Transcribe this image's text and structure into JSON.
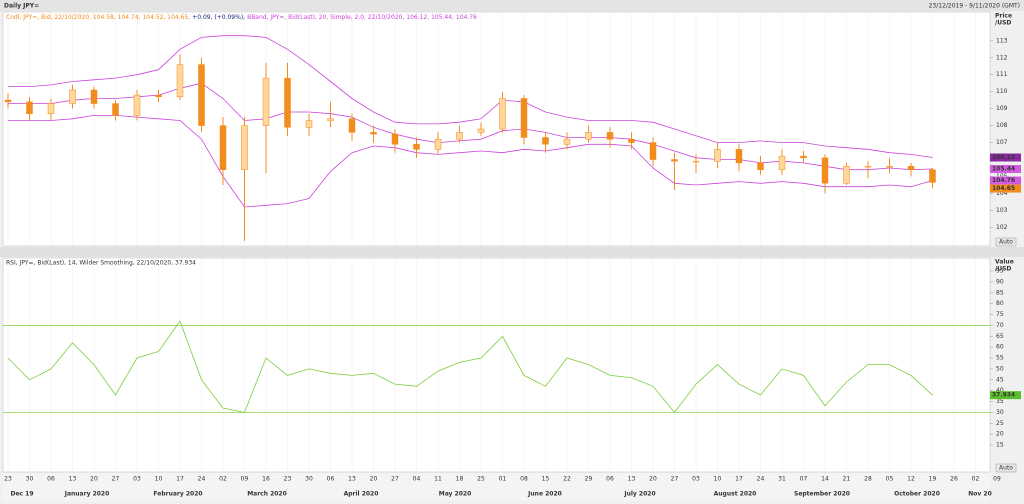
{
  "header": {
    "title": "Daily JPY=",
    "range": "23/12/2019 - 9/11/2020 (GMT)"
  },
  "chart_data": [
    {
      "type": "candlestick",
      "legend": [
        "Cndl, JPY=, Bid, 22/10/2020, 104.58, 104.74, 104.52, 104.65,",
        "+0.09, (+0.09%),",
        "BBand, JPY=, Bid(Last), 20, Simple, 2.0, 22/10/2020, 106.12, 105.44, 104.76"
      ],
      "ylabel": [
        "Price",
        "/USD"
      ],
      "scale_button": "Auto",
      "categories": [
        "23",
        "30",
        "06",
        "13",
        "20",
        "27",
        "03",
        "10",
        "17",
        "24",
        "02",
        "09",
        "16",
        "23",
        "30",
        "06",
        "13",
        "20",
        "27",
        "04",
        "11",
        "18",
        "25",
        "01",
        "08",
        "15",
        "22",
        "29",
        "06",
        "13",
        "20",
        "27",
        "03",
        "10",
        "17",
        "24",
        "31",
        "07",
        "14",
        "21",
        "28",
        "05",
        "12",
        "19",
        "26",
        "02",
        "09"
      ],
      "months": [
        "Dec 19",
        "January 2020",
        "February 2020",
        "March 2020",
        "April 2020",
        "May 2020",
        "June 2020",
        "July 2020",
        "August 2020",
        "September 2020",
        "October 2020",
        "Nov 20"
      ],
      "open": [
        109.5,
        109.4,
        108.7,
        109.3,
        110.1,
        109.3,
        108.6,
        109.8,
        109.7,
        111.6,
        108.0,
        105.4,
        108.0,
        110.8,
        107.9,
        108.3,
        108.4,
        107.6,
        107.5,
        106.9,
        106.6,
        107.2,
        107.6,
        107.8,
        109.6,
        107.3,
        106.9,
        107.2,
        107.6,
        107.2,
        107.0,
        106.0,
        105.9,
        105.9,
        106.6,
        105.8,
        105.4,
        106.2,
        106.1,
        104.6,
        105.6,
        105.6,
        105.6,
        105.4,
        null,
        null,
        null
      ],
      "high": [
        109.9,
        109.7,
        109.6,
        110.4,
        110.3,
        109.5,
        110.1,
        110.1,
        112.2,
        112.0,
        108.5,
        108.5,
        111.7,
        111.7,
        108.7,
        109.4,
        108.7,
        108.0,
        107.8,
        107.3,
        107.6,
        108.0,
        108.2,
        110.0,
        109.8,
        107.6,
        107.6,
        108.0,
        107.9,
        107.6,
        107.3,
        106.4,
        106.3,
        107.0,
        106.9,
        106.2,
        106.6,
        106.5,
        106.3,
        105.8,
        105.9,
        106.1,
        105.8,
        105.5,
        null,
        null,
        null
      ],
      "low": [
        109.0,
        108.3,
        108.3,
        109.0,
        109.0,
        108.3,
        108.3,
        109.4,
        109.5,
        107.6,
        104.5,
        101.2,
        105.2,
        107.4,
        107.4,
        107.9,
        107.1,
        107.0,
        106.4,
        106.1,
        106.3,
        107.0,
        107.4,
        107.6,
        106.9,
        106.4,
        106.6,
        107.0,
        106.7,
        106.6,
        105.6,
        104.2,
        105.2,
        105.5,
        105.3,
        105.1,
        105.1,
        105.8,
        104.0,
        104.5,
        104.9,
        105.2,
        105.0,
        104.3,
        null,
        null,
        null
      ],
      "close": [
        109.4,
        108.7,
        109.3,
        110.1,
        109.3,
        108.6,
        109.8,
        109.7,
        111.6,
        108.0,
        105.4,
        108.0,
        110.8,
        107.9,
        108.3,
        108.4,
        107.6,
        107.5,
        106.9,
        106.6,
        107.2,
        107.6,
        107.8,
        109.6,
        107.3,
        106.9,
        107.2,
        107.6,
        107.2,
        107.0,
        106.0,
        105.9,
        105.9,
        106.6,
        105.8,
        105.4,
        106.2,
        106.1,
        104.6,
        105.6,
        105.6,
        105.6,
        105.4,
        104.65,
        null,
        null,
        null
      ],
      "up_color": "#ffd79a",
      "down_color": "#f28c1c",
      "series": [
        {
          "color": "#cc44dd",
          "flag_color": "#8a2aa0",
          "values": [
            110.3,
            110.3,
            110.4,
            110.6,
            110.7,
            110.8,
            111.0,
            111.3,
            112.5,
            113.2,
            113.3,
            113.3,
            113.2,
            112.5,
            111.6,
            110.6,
            109.6,
            108.8,
            108.2,
            108.1,
            108.1,
            108.2,
            108.4,
            109.5,
            109.4,
            108.8,
            108.5,
            108.3,
            108.3,
            108.3,
            108.2,
            107.8,
            107.4,
            107.0,
            107.0,
            107.1,
            107.0,
            107.0,
            106.8,
            106.7,
            106.6,
            106.4,
            106.3,
            106.12,
            null,
            null,
            null
          ]
        },
        {
          "color": "#cc44dd",
          "flag_color": "#d35be0",
          "values": [
            109.3,
            109.3,
            109.3,
            109.5,
            109.6,
            109.6,
            109.7,
            109.8,
            110.2,
            110.5,
            109.6,
            108.3,
            108.4,
            108.8,
            108.8,
            108.7,
            108.5,
            107.9,
            107.5,
            107.2,
            107.0,
            107.1,
            107.2,
            107.7,
            107.8,
            107.6,
            107.3,
            107.3,
            107.3,
            107.2,
            106.9,
            106.5,
            106.1,
            106.0,
            106.0,
            105.8,
            105.9,
            105.8,
            105.6,
            105.4,
            105.4,
            105.5,
            105.4,
            105.44,
            null,
            null,
            null
          ]
        },
        {
          "color": "#cc44dd",
          "flag_color": "#d35be0",
          "values": [
            108.3,
            108.3,
            108.3,
            108.4,
            108.6,
            108.6,
            108.5,
            108.4,
            108.3,
            107.2,
            105.0,
            103.2,
            103.3,
            103.4,
            103.7,
            105.3,
            106.4,
            106.8,
            106.7,
            106.4,
            106.3,
            106.4,
            106.5,
            106.4,
            106.6,
            106.5,
            106.7,
            106.9,
            106.9,
            106.8,
            105.5,
            104.6,
            104.5,
            104.6,
            104.7,
            104.6,
            104.7,
            104.6,
            104.4,
            104.4,
            104.4,
            104.5,
            104.4,
            104.76,
            null,
            null,
            null
          ]
        }
      ],
      "ylim": [
        100.9,
        114.7
      ],
      "yticks": [
        102,
        103,
        104,
        105,
        106,
        107,
        108,
        109,
        110,
        111,
        112,
        113
      ]
    },
    {
      "type": "line",
      "legend": [
        "RSI, JPY=, Bid(Last), 14, Wilder Smoothing, 22/10/2020, 37.934"
      ],
      "ylabel": [
        "Value",
        "/USD"
      ],
      "scale_button": "Auto",
      "color": "#7ccd3c",
      "level_color": "#8fd14f",
      "levels": [
        70,
        30
      ],
      "values": [
        55,
        45,
        50,
        62,
        52,
        38,
        55,
        58,
        72,
        45,
        32,
        30,
        55,
        47,
        50,
        48,
        47,
        48,
        43,
        42,
        49,
        53,
        55,
        65,
        47,
        42,
        55,
        52,
        47,
        46,
        42,
        30,
        43,
        52,
        43,
        38,
        50,
        47,
        33,
        44,
        52,
        52,
        47,
        37.934,
        null,
        null,
        null
      ],
      "ylim": [
        2.6,
        101
      ],
      "yticks": [
        15,
        20,
        25,
        30,
        35,
        40,
        45,
        50,
        55,
        60,
        65,
        70,
        75,
        80,
        85,
        90,
        95
      ]
    }
  ]
}
